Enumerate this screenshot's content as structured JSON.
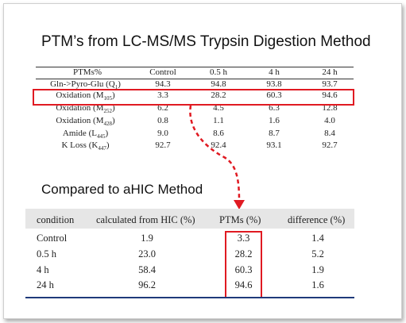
{
  "title": "PTM’s from LC-MS/MS Trypsin Digestion Method",
  "subtitle": "Compared to aHIC Method",
  "table1": {
    "headers": [
      "PTMs%",
      "Control",
      "0.5 h",
      "4 h",
      "24 h"
    ],
    "rows": [
      {
        "label": "Gln->Pyro-Glu (Q",
        "sub": "1",
        "suffix": ")",
        "values": [
          "94.3",
          "94.8",
          "93.8",
          "93.7"
        ]
      },
      {
        "label": "Oxidation (M",
        "sub": "105",
        "suffix": ")",
        "values": [
          "3.3",
          "28.2",
          "60.3",
          "94.6"
        ]
      },
      {
        "label": "Oxidation (M",
        "sub": "252",
        "suffix": ")",
        "values": [
          "6.2",
          "4.5",
          "6.3",
          "12.8"
        ]
      },
      {
        "label": "Oxidation (M",
        "sub": "428",
        "suffix": ")",
        "values": [
          "0.8",
          "1.1",
          "1.6",
          "4.0"
        ]
      },
      {
        "label": "Amide (L",
        "sub": "445",
        "suffix": ")",
        "values": [
          "9.0",
          "8.6",
          "8.7",
          "8.4"
        ]
      },
      {
        "label": "K Loss (K",
        "sub": "447",
        "suffix": ")",
        "values": [
          "92.7",
          "92.4",
          "93.1",
          "92.7"
        ]
      }
    ]
  },
  "table2": {
    "headers": [
      "condition",
      "calculated from HIC (%)",
      "PTMs (%)",
      "difference (%)"
    ],
    "rows": [
      {
        "condition": "Control",
        "hic": "1.9",
        "ptms": "3.3",
        "diff": "1.4"
      },
      {
        "condition": "0.5 h",
        "hic": "23.0",
        "ptms": "28.2",
        "diff": "5.2"
      },
      {
        "condition": "4 h",
        "hic": "58.4",
        "ptms": "60.3",
        "diff": "1.9"
      },
      {
        "condition": "24 h",
        "hic": "96.2",
        "ptms": "94.6",
        "diff": "1.6"
      }
    ]
  },
  "colors": {
    "highlight": "#e01a22",
    "bottom_rule": "#1f3a7a",
    "header_band": "#e6e6e6"
  }
}
